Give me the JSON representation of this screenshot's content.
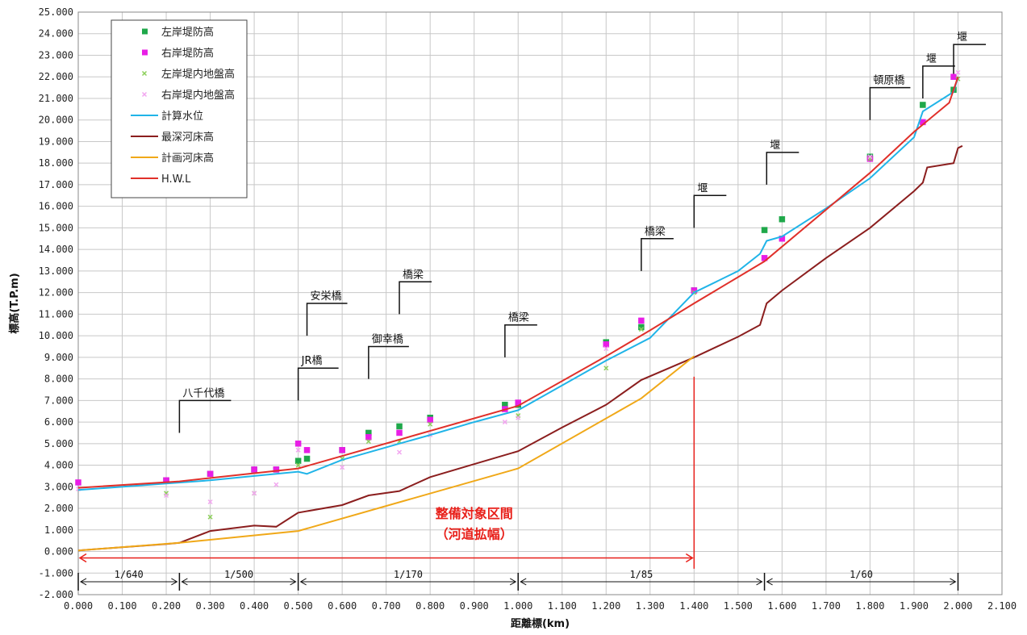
{
  "chart_data": {
    "type": "line",
    "xlabel": "距離標(km)",
    "ylabel": "標高(T.P.m)",
    "xlim": [
      0,
      2.1
    ],
    "ylim": [
      -2,
      25
    ],
    "x_ticks": [
      "0.000",
      "0.100",
      "0.200",
      "0.300",
      "0.400",
      "0.500",
      "0.600",
      "0.700",
      "0.800",
      "0.900",
      "1.000",
      "1.100",
      "1.200",
      "1.300",
      "1.400",
      "1.500",
      "1.600",
      "1.700",
      "1.800",
      "1.900",
      "2.000",
      "2.100"
    ],
    "y_ticks": [
      "-2.000",
      "-1.000",
      "0.000",
      "1.000",
      "2.000",
      "3.000",
      "4.000",
      "5.000",
      "6.000",
      "7.000",
      "8.000",
      "9.000",
      "10.000",
      "11.000",
      "12.000",
      "13.000",
      "14.000",
      "15.000",
      "16.000",
      "17.000",
      "18.000",
      "19.000",
      "20.000",
      "21.000",
      "22.000",
      "23.000",
      "24.000",
      "25.000"
    ],
    "grid": true,
    "legend_position": "top-left",
    "series": [
      {
        "name": "左岸堤防高",
        "kind": "scatter",
        "marker": "square",
        "color": "#1fa84a",
        "points": [
          [
            0.2,
            3.3
          ],
          [
            0.3,
            3.6
          ],
          [
            0.4,
            3.8
          ],
          [
            0.45,
            3.8
          ],
          [
            0.5,
            4.2
          ],
          [
            0.52,
            4.3
          ],
          [
            0.6,
            4.7
          ],
          [
            0.66,
            5.5
          ],
          [
            0.73,
            5.8
          ],
          [
            0.8,
            6.2
          ],
          [
            0.97,
            6.8
          ],
          [
            1.0,
            6.8
          ],
          [
            1.2,
            9.7
          ],
          [
            1.28,
            10.4
          ],
          [
            1.4,
            12.1
          ],
          [
            1.56,
            14.9
          ],
          [
            1.6,
            15.4
          ],
          [
            1.8,
            18.3
          ],
          [
            1.92,
            20.7
          ],
          [
            1.99,
            21.4
          ]
        ]
      },
      {
        "name": "右岸堤防高",
        "kind": "scatter",
        "marker": "square",
        "color": "#e81ee6",
        "points": [
          [
            0.0,
            3.2
          ],
          [
            0.2,
            3.3
          ],
          [
            0.3,
            3.6
          ],
          [
            0.4,
            3.8
          ],
          [
            0.45,
            3.8
          ],
          [
            0.5,
            5.0
          ],
          [
            0.52,
            4.7
          ],
          [
            0.6,
            4.7
          ],
          [
            0.66,
            5.3
          ],
          [
            0.73,
            5.5
          ],
          [
            0.8,
            6.1
          ],
          [
            0.97,
            6.6
          ],
          [
            1.0,
            6.9
          ],
          [
            1.2,
            9.6
          ],
          [
            1.28,
            10.7
          ],
          [
            1.4,
            12.1
          ],
          [
            1.56,
            13.6
          ],
          [
            1.6,
            14.5
          ],
          [
            1.8,
            18.2
          ],
          [
            1.92,
            19.9
          ],
          [
            1.99,
            22.0
          ]
        ]
      },
      {
        "name": "左岸堤内地盤高",
        "kind": "scatter",
        "marker": "x",
        "color": "#8ccf5a",
        "points": [
          [
            0.2,
            2.7
          ],
          [
            0.3,
            1.6
          ],
          [
            0.4,
            2.7
          ],
          [
            0.5,
            4.0
          ],
          [
            0.6,
            4.3
          ],
          [
            0.66,
            5.1
          ],
          [
            0.73,
            5.1
          ],
          [
            0.8,
            5.9
          ],
          [
            1.0,
            6.3
          ],
          [
            1.2,
            8.5
          ],
          [
            1.28,
            10.3
          ],
          [
            1.4,
            12.0
          ],
          [
            1.8,
            18.2
          ],
          [
            2.0,
            21.9
          ]
        ]
      },
      {
        "name": "右岸堤内地盤高",
        "kind": "scatter",
        "marker": "x",
        "color": "#f2a6f0",
        "points": [
          [
            0.0,
            2.9
          ],
          [
            0.2,
            2.6
          ],
          [
            0.3,
            2.3
          ],
          [
            0.4,
            2.7
          ],
          [
            0.45,
            3.1
          ],
          [
            0.5,
            4.7
          ],
          [
            0.6,
            3.9
          ],
          [
            0.73,
            4.6
          ],
          [
            0.8,
            5.4
          ],
          [
            0.97,
            6.0
          ],
          [
            1.0,
            6.2
          ],
          [
            1.2,
            9.4
          ],
          [
            1.8,
            18.3
          ],
          [
            2.0,
            22.2
          ]
        ]
      },
      {
        "name": "計算水位",
        "kind": "line",
        "color": "#20b4e8",
        "points": [
          [
            0.0,
            2.85
          ],
          [
            0.2,
            3.15
          ],
          [
            0.3,
            3.3
          ],
          [
            0.4,
            3.5
          ],
          [
            0.5,
            3.7
          ],
          [
            0.52,
            3.6
          ],
          [
            0.6,
            4.25
          ],
          [
            0.73,
            5.0
          ],
          [
            0.8,
            5.4
          ],
          [
            0.9,
            6.0
          ],
          [
            1.0,
            6.55
          ],
          [
            1.1,
            7.7
          ],
          [
            1.2,
            8.85
          ],
          [
            1.3,
            9.9
          ],
          [
            1.4,
            12.0
          ],
          [
            1.5,
            13.0
          ],
          [
            1.55,
            13.8
          ],
          [
            1.565,
            14.4
          ],
          [
            1.6,
            14.6
          ],
          [
            1.7,
            15.9
          ],
          [
            1.8,
            17.3
          ],
          [
            1.9,
            19.2
          ],
          [
            1.92,
            20.4
          ],
          [
            1.99,
            21.3
          ],
          [
            2.0,
            22.0
          ]
        ]
      },
      {
        "name": "最深河床高",
        "kind": "line",
        "color": "#8b1e1e",
        "points": [
          [
            0.0,
            0.05
          ],
          [
            0.2,
            0.35
          ],
          [
            0.23,
            0.4
          ],
          [
            0.3,
            0.95
          ],
          [
            0.4,
            1.2
          ],
          [
            0.45,
            1.15
          ],
          [
            0.5,
            1.8
          ],
          [
            0.6,
            2.15
          ],
          [
            0.66,
            2.6
          ],
          [
            0.73,
            2.8
          ],
          [
            0.8,
            3.45
          ],
          [
            0.9,
            4.05
          ],
          [
            1.0,
            4.65
          ],
          [
            1.1,
            5.75
          ],
          [
            1.2,
            6.8
          ],
          [
            1.28,
            7.95
          ],
          [
            1.4,
            9.0
          ],
          [
            1.5,
            9.95
          ],
          [
            1.55,
            10.5
          ],
          [
            1.565,
            11.5
          ],
          [
            1.6,
            12.1
          ],
          [
            1.7,
            13.6
          ],
          [
            1.8,
            15.0
          ],
          [
            1.9,
            16.7
          ],
          [
            1.92,
            17.1
          ],
          [
            1.93,
            17.8
          ],
          [
            1.99,
            18.0
          ],
          [
            2.0,
            18.7
          ],
          [
            2.01,
            18.8
          ]
        ]
      },
      {
        "name": "計画河床高",
        "kind": "line",
        "color": "#f0a818",
        "points": [
          [
            0.0,
            0.05
          ],
          [
            0.23,
            0.4
          ],
          [
            0.5,
            0.95
          ],
          [
            1.0,
            3.85
          ],
          [
            1.28,
            7.1
          ],
          [
            1.4,
            9.05
          ]
        ]
      },
      {
        "name": "H.W.L",
        "kind": "line",
        "color": "#e0302a",
        "points": [
          [
            0.0,
            2.95
          ],
          [
            0.23,
            3.25
          ],
          [
            0.5,
            3.85
          ],
          [
            1.0,
            6.75
          ],
          [
            1.2,
            9.05
          ],
          [
            1.3,
            10.25
          ],
          [
            1.4,
            11.5
          ],
          [
            1.56,
            13.45
          ],
          [
            1.8,
            17.55
          ],
          [
            1.9,
            19.45
          ],
          [
            1.98,
            20.8
          ],
          [
            2.0,
            22.0
          ]
        ]
      }
    ],
    "bridges": [
      {
        "label": "八千代橋",
        "x": 0.23,
        "y_base": 5.5,
        "y_top": 7.0
      },
      {
        "label": "JR橋",
        "x": 0.5,
        "y_base": 7.0,
        "y_top": 8.5
      },
      {
        "label": "安栄橋",
        "x": 0.52,
        "y_base": 10.0,
        "y_top": 11.5
      },
      {
        "label": "御幸橋",
        "x": 0.66,
        "y_base": 8.0,
        "y_top": 9.5
      },
      {
        "label": "橋梁",
        "x": 0.73,
        "y_base": 11.0,
        "y_top": 12.5
      },
      {
        "label": "橋梁",
        "x": 0.97,
        "y_base": 9.0,
        "y_top": 10.5
      },
      {
        "label": "橋梁",
        "x": 1.28,
        "y_base": 13.0,
        "y_top": 14.5
      },
      {
        "label": "堰",
        "x": 1.4,
        "y_base": 15.0,
        "y_top": 16.5
      },
      {
        "label": "堰",
        "x": 1.565,
        "y_base": 17.0,
        "y_top": 18.5
      },
      {
        "label": "頓原橋",
        "x": 1.8,
        "y_base": 20.0,
        "y_top": 21.5
      },
      {
        "label": "堰",
        "x": 1.92,
        "y_base": 21.0,
        "y_top": 22.5
      },
      {
        "label": "堰",
        "x": 1.99,
        "y_base": 22.0,
        "y_top": 23.5
      }
    ],
    "slopes": [
      {
        "label": "1/640",
        "x1": 0.0,
        "x2": 0.23
      },
      {
        "label": "1/500",
        "x1": 0.23,
        "x2": 0.5
      },
      {
        "label": "1/170",
        "x1": 0.5,
        "x2": 1.0
      },
      {
        "label": "1/85",
        "x1": 1.0,
        "x2": 1.56
      },
      {
        "label": "1/60",
        "x1": 1.56,
        "x2": 2.0
      }
    ],
    "slope_y": -1.4,
    "target_section": {
      "label_line1": "整備対象区間",
      "label_line2": "（河道拡幅）",
      "x1": 0.0,
      "x2": 1.4,
      "y": -0.3,
      "x_label": 0.9,
      "color": "#e8201a"
    }
  }
}
